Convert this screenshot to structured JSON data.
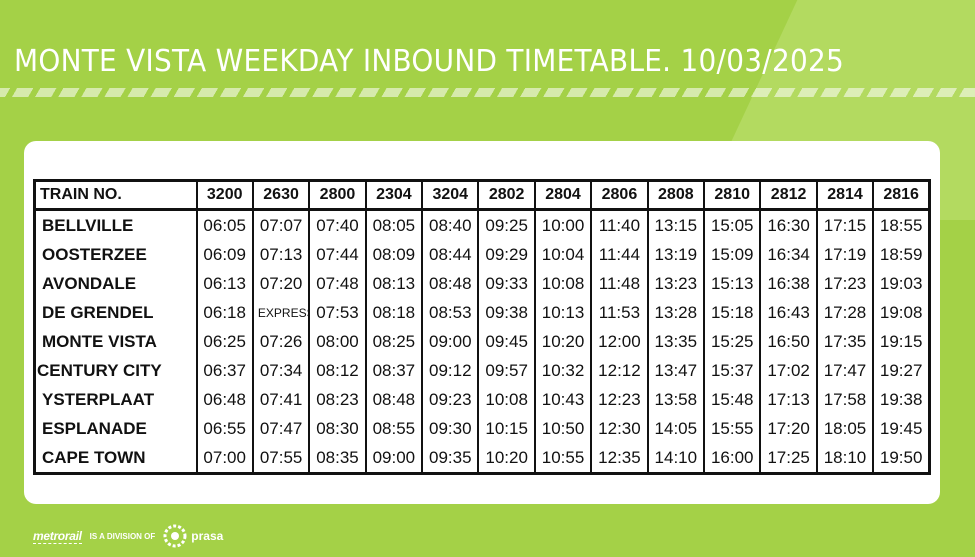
{
  "title": "MONTE VISTA WEEKDAY INBOUND TIMETABLE. 10/03/2025",
  "colors": {
    "background": "#a4d147",
    "card": "#ffffff",
    "text": "#111111",
    "accent": "#ffffff"
  },
  "table": {
    "header_label": "TRAIN NO.",
    "trains": [
      "3200",
      "2630",
      "2800",
      "2304",
      "3204",
      "2802",
      "2804",
      "2806",
      "2808",
      "2810",
      "2812",
      "2814",
      "2816"
    ],
    "rows": [
      {
        "station": "BELLVILLE",
        "times": [
          "06:05",
          "07:07",
          "07:40",
          "08:05",
          "08:40",
          "09:25",
          "10:00",
          "11:40",
          "13:15",
          "15:05",
          "16:30",
          "17:15",
          "18:55"
        ]
      },
      {
        "station": "OOSTERZEE",
        "times": [
          "06:09",
          "07:13",
          "07:44",
          "08:09",
          "08:44",
          "09:29",
          "10:04",
          "11:44",
          "13:19",
          "15:09",
          "16:34",
          "17:19",
          "18:59"
        ]
      },
      {
        "station": "AVONDALE",
        "times": [
          "06:13",
          "07:20",
          "07:48",
          "08:13",
          "08:48",
          "09:33",
          "10:08",
          "11:48",
          "13:23",
          "15:13",
          "16:38",
          "17:23",
          "19:03"
        ]
      },
      {
        "station": "DE GRENDEL",
        "times": [
          "06:18",
          "EXPRESS",
          "07:53",
          "08:18",
          "08:53",
          "09:38",
          "10:13",
          "11:53",
          "13:28",
          "15:18",
          "16:43",
          "17:28",
          "19:08"
        ]
      },
      {
        "station": "MONTE VISTA",
        "times": [
          "06:25",
          "07:26",
          "08:00",
          "08:25",
          "09:00",
          "09:45",
          "10:20",
          "12:00",
          "13:35",
          "15:25",
          "16:50",
          "17:35",
          "19:15"
        ]
      },
      {
        "station": "CENTURY CITY",
        "times": [
          "06:37",
          "07:34",
          "08:12",
          "08:37",
          "09:12",
          "09:57",
          "10:32",
          "12:12",
          "13:47",
          "15:37",
          "17:02",
          "17:47",
          "19:27"
        ]
      },
      {
        "station": "YSTERPLAAT",
        "times": [
          "06:48",
          "07:41",
          "08:23",
          "08:48",
          "09:23",
          "10:08",
          "10:43",
          "12:23",
          "13:58",
          "15:48",
          "17:13",
          "17:58",
          "19:38"
        ]
      },
      {
        "station": "ESPLANADE",
        "times": [
          "06:55",
          "07:47",
          "08:30",
          "08:55",
          "09:30",
          "10:15",
          "10:50",
          "12:30",
          "14:05",
          "15:55",
          "17:20",
          "18:05",
          "19:45"
        ]
      },
      {
        "station": "CAPE TOWN",
        "times": [
          "07:00",
          "07:55",
          "08:35",
          "09:00",
          "09:35",
          "10:20",
          "10:55",
          "12:35",
          "14:10",
          "16:00",
          "17:25",
          "18:10",
          "19:50"
        ]
      }
    ]
  },
  "footer": {
    "metrorail": "metrorail",
    "division_text": "IS A DIVISION OF",
    "prasa": "prasa",
    "prasa_icon": "prasa-logo-icon"
  }
}
